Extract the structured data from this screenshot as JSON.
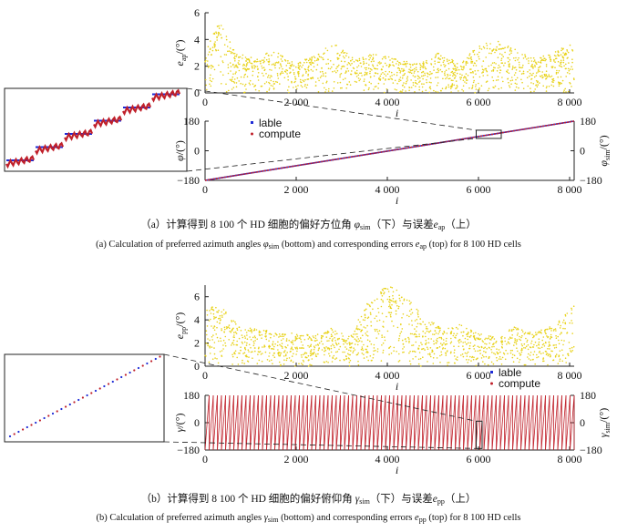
{
  "chart_data": [
    {
      "type": "scatter",
      "id": "e_ap",
      "ylabel": "e_ap/(°)",
      "ylabel_sym": "e",
      "ylabel_sub": "ap",
      "ylabel_unit": "/(°)",
      "xlabel": "i",
      "xlim": [
        0,
        8100
      ],
      "ylim": [
        0,
        6
      ],
      "xticks": [
        0,
        2000,
        4000,
        6000,
        8000
      ],
      "xtick_labels": [
        "0",
        "2 000",
        "4 000",
        "6 000",
        "8 000"
      ],
      "yticks": [
        0,
        2,
        4,
        6
      ],
      "ytick_labels": [
        "0",
        "2",
        "4",
        "6"
      ],
      "color": "#e8d21a",
      "envelope": {
        "x": [
          0,
          300,
          700,
          1100,
          1500,
          2000,
          2500,
          2800,
          3300,
          3800,
          4200,
          4700,
          5100,
          5600,
          6000,
          6400,
          6800,
          7200,
          7600,
          8100
        ],
        "max": [
          4.0,
          5.4,
          3.0,
          2.6,
          3.2,
          2.2,
          3.0,
          3.8,
          2.6,
          3.0,
          2.5,
          2.2,
          3.0,
          2.2,
          3.6,
          3.9,
          3.3,
          2.6,
          3.0,
          3.8
        ]
      }
    },
    {
      "type": "line",
      "id": "phi",
      "ylabel": "φ/(°)",
      "ylabel_sym": "φ",
      "ylabel_unit": "/(°)",
      "right_ylabel_sym": "φ",
      "right_ylabel_sub": "sim",
      "right_ylabel_unit": "/(°)",
      "xlabel": "i",
      "xlim": [
        0,
        8100
      ],
      "ylim": [
        -180,
        180
      ],
      "xticks": [
        0,
        2000,
        4000,
        6000,
        8000
      ],
      "xtick_labels": [
        "0",
        "2 000",
        "4 000",
        "6 000",
        "8 000"
      ],
      "yticks": [
        -180,
        0,
        180
      ],
      "ytick_labels": [
        "−180",
        "0",
        "180"
      ],
      "series": [
        {
          "name": "lable",
          "color": "#1e2bd6",
          "x": [
            0,
            8100
          ],
          "y": [
            -180,
            180
          ]
        },
        {
          "name": "compute",
          "color": "#c0202a",
          "x": [
            0,
            8100
          ],
          "y": [
            -180,
            180
          ]
        }
      ],
      "legend": "top-left",
      "zoom_rect_x": [
        5950,
        6500
      ],
      "zoom_rect_y": [
        75,
        125
      ]
    },
    {
      "type": "scatter",
      "id": "e_pp",
      "ylabel": "e_pp/(°)",
      "ylabel_sym": "e",
      "ylabel_sub": "pp",
      "ylabel_unit": "/(°)",
      "xlabel": "i",
      "xlim": [
        0,
        8100
      ],
      "ylim": [
        0,
        7
      ],
      "xticks": [
        0,
        2000,
        4000,
        6000,
        8000
      ],
      "xtick_labels": [
        "0",
        "2 000",
        "4 000",
        "6 000",
        "8 000"
      ],
      "yticks": [
        0,
        2,
        4,
        6
      ],
      "ytick_labels": [
        "0",
        "2",
        "4",
        "6"
      ],
      "color": "#e8d21a",
      "envelope": {
        "x": [
          0,
          400,
          800,
          1200,
          1600,
          2000,
          2400,
          2800,
          3200,
          3600,
          4000,
          4400,
          4800,
          5200,
          5600,
          6000,
          6400,
          6800,
          7200,
          7600,
          8100
        ],
        "max": [
          5.2,
          5.0,
          3.2,
          3.4,
          2.8,
          3.0,
          2.6,
          3.4,
          2.7,
          6.0,
          7.0,
          6.2,
          4.4,
          3.2,
          3.6,
          2.8,
          2.6,
          3.4,
          2.9,
          3.5,
          5.3
        ]
      }
    },
    {
      "type": "line",
      "id": "gamma",
      "ylabel": "γ/(°)",
      "ylabel_sym": "γ",
      "ylabel_unit": "/(°)",
      "right_ylabel_sym": "γ",
      "right_ylabel_sub": "sim",
      "right_ylabel_unit": "/(°)",
      "xlabel": "i",
      "xlim": [
        0,
        8100
      ],
      "ylim": [
        -180,
        180
      ],
      "xticks": [
        0,
        2000,
        4000,
        6000,
        8000
      ],
      "xtick_labels": [
        "0",
        "2 000",
        "4 000",
        "6 000",
        "8 000"
      ],
      "yticks": [
        -180,
        0,
        180
      ],
      "ytick_labels": [
        "−180",
        "0",
        "180"
      ],
      "series": [
        {
          "name": "lable",
          "color": "#1e2bd6"
        },
        {
          "name": "compute",
          "color": "#c0202a"
        }
      ],
      "sawtooth_period": 90,
      "legend": "top-right",
      "zoom_rect_x": [
        5950,
        6080
      ],
      "zoom_rect_y": [
        -170,
        10
      ]
    }
  ],
  "captions": {
    "a_zh": "（a）计算得到 8 100 个 HD 细胞的偏好方位角",
    "a_zh_sym": "φ",
    "a_zh_sub": "sim",
    "a_zh_mid": "（下）与误差",
    "a_zh_err": "e",
    "a_zh_err_sub": "ap",
    "a_zh_end": "（上）",
    "a_en": "(a) Calculation of preferred azimuth angles",
    "a_en_sym": "φ",
    "a_en_sub": "sim",
    "a_en_mid": "(bottom) and corresponding errors",
    "a_en_err": "e",
    "a_en_err_sub": "ap",
    "a_en_end": "(top) for 8 100 HD cells",
    "b_zh": "（b）计算得到 8 100 个 HD 细胞的偏好俯仰角",
    "b_zh_sym": "γ",
    "b_zh_sub": "sim",
    "b_zh_mid": "（下）与误差",
    "b_zh_err": "e",
    "b_zh_err_sub": "pp",
    "b_zh_end": "（上）",
    "b_en": "(b) Calculation of preferred azimuth angles",
    "b_en_sym": "γ",
    "b_en_sub": "sim",
    "b_en_mid": "(bottom) and corresponding errors",
    "b_en_err": "e",
    "b_en_err_sub": "pp",
    "b_en_end": "(top) for 8 100 HD cells"
  }
}
